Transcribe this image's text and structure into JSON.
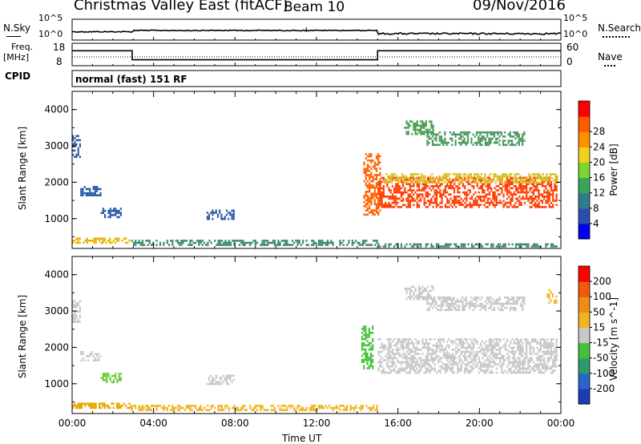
{
  "header": {
    "title": "Christmas Valley East (fitACF)",
    "beam": "Beam 10",
    "date": "09/Nov/2016"
  },
  "sky_panel": {
    "left_label": "N.Sky",
    "right_label": "N.Search",
    "left_ticks": [
      "10^5",
      "10^0"
    ],
    "right_ticks": [
      "10^5",
      "10^0"
    ]
  },
  "freq_panel": {
    "left_label_1": "Freq.",
    "left_label_2": "[MHz]",
    "right_label": "Nave",
    "left_ticks": [
      "18",
      "8"
    ],
    "right_ticks": [
      "60",
      "0"
    ]
  },
  "cpid_panel": {
    "label": "CPID",
    "mode": "normal (fast) 151 RF"
  },
  "xaxis": {
    "label": "Time UT",
    "ticks": [
      "00:00",
      "04:00",
      "08:00",
      "12:00",
      "16:00",
      "20:00",
      "00:00"
    ]
  },
  "chart_data": [
    {
      "type": "heatmap",
      "title": "",
      "parameter": "Power",
      "xlabel": "Time UT",
      "ylabel": "Slant Range [km]",
      "yticks": [
        "1000",
        "2000",
        "3000",
        "4000"
      ],
      "ylim": [
        180,
        4500
      ],
      "xlim": [
        0,
        24
      ],
      "colorbar": {
        "label": "Power [dB]",
        "range": [
          0,
          32
        ],
        "ticks": [
          "4",
          "8",
          "12",
          "16",
          "20",
          "24",
          "28"
        ],
        "colors": [
          "#0000ee",
          "#2a4db0",
          "#2e7d8c",
          "#3aa55a",
          "#7cd62e",
          "#f0d21e",
          "#ff9000",
          "#ff5a00",
          "#ff0000"
        ]
      },
      "regions": [
        {
          "t0": 0.0,
          "t1": 2.9,
          "r0": 350,
          "r1": 480,
          "color": "#e8b400"
        },
        {
          "t0": 2.9,
          "t1": 15.0,
          "r0": 250,
          "r1": 420,
          "color": "#3a8a6c"
        },
        {
          "t0": 15.0,
          "t1": 23.8,
          "r0": 250,
          "r1": 320,
          "color": "#3a8a6c"
        },
        {
          "t0": 0.0,
          "t1": 0.35,
          "r0": 2700,
          "r1": 3300,
          "color": "#2a5aa8"
        },
        {
          "t0": 0.4,
          "t1": 1.4,
          "r0": 1650,
          "r1": 1900,
          "color": "#2a5aa8"
        },
        {
          "t0": 1.4,
          "t1": 2.4,
          "r0": 1050,
          "r1": 1300,
          "color": "#2a5aa8"
        },
        {
          "t0": 6.6,
          "t1": 7.9,
          "r0": 1000,
          "r1": 1250,
          "color": "#2a5aa8"
        },
        {
          "t0": 14.3,
          "t1": 15.1,
          "r0": 1100,
          "r1": 2800,
          "color": "#ff6000"
        },
        {
          "t0": 15.0,
          "t1": 23.8,
          "r0": 1300,
          "r1": 2150,
          "color": "#ff3c00"
        },
        {
          "t0": 15.3,
          "t1": 23.8,
          "r0": 2000,
          "r1": 2250,
          "color": "#d8c020"
        },
        {
          "t0": 16.3,
          "t1": 17.7,
          "r0": 3300,
          "r1": 3700,
          "color": "#4aa050"
        },
        {
          "t0": 17.4,
          "t1": 22.2,
          "r0": 3000,
          "r1": 3400,
          "color": "#4a9a60"
        }
      ]
    },
    {
      "type": "heatmap",
      "title": "",
      "parameter": "Velocity",
      "xlabel": "Time UT",
      "ylabel": "Slant Range [km]",
      "yticks": [
        "1000",
        "2000",
        "3000",
        "4000"
      ],
      "ylim": [
        180,
        4500
      ],
      "xlim": [
        0,
        24
      ],
      "colorbar": {
        "label": "Velocity [m s^-1]",
        "range": [
          -250,
          250
        ],
        "ticks": [
          "200",
          "100",
          "50",
          "15",
          "-15",
          "-50",
          "-100",
          "-200"
        ],
        "colors": [
          "#1e3cb4",
          "#2a64c8",
          "#2e9a6c",
          "#46c03a",
          "#c8c8c8",
          "#f0b41e",
          "#f08c14",
          "#f05a0a",
          "#ff0000"
        ]
      },
      "regions": [
        {
          "t0": 0.0,
          "t1": 2.9,
          "r0": 350,
          "r1": 480,
          "color": "#e8a800"
        },
        {
          "t0": 2.9,
          "t1": 15.0,
          "r0": 250,
          "r1": 420,
          "color": "#f0b41e"
        },
        {
          "t0": 0.0,
          "t1": 0.35,
          "r0": 2700,
          "r1": 3300,
          "color": "#c8c8c8"
        },
        {
          "t0": 0.4,
          "t1": 1.4,
          "r0": 1650,
          "r1": 1900,
          "color": "#c8c8c8"
        },
        {
          "t0": 1.4,
          "t1": 2.4,
          "r0": 1050,
          "r1": 1300,
          "color": "#6ccc3c"
        },
        {
          "t0": 6.6,
          "t1": 7.9,
          "r0": 1000,
          "r1": 1250,
          "color": "#c8c8c8"
        },
        {
          "t0": 14.2,
          "t1": 14.8,
          "r0": 1400,
          "r1": 2600,
          "color": "#46c03a"
        },
        {
          "t0": 15.0,
          "t1": 23.8,
          "r0": 1300,
          "r1": 2250,
          "color": "#c8c8c8"
        },
        {
          "t0": 16.3,
          "t1": 17.7,
          "r0": 3300,
          "r1": 3700,
          "color": "#c8c8c8"
        },
        {
          "t0": 17.4,
          "t1": 22.2,
          "r0": 3000,
          "r1": 3400,
          "color": "#c8c8c8"
        },
        {
          "t0": 23.3,
          "t1": 23.8,
          "r0": 3200,
          "r1": 3600,
          "color": "#f0b41e"
        }
      ]
    }
  ]
}
